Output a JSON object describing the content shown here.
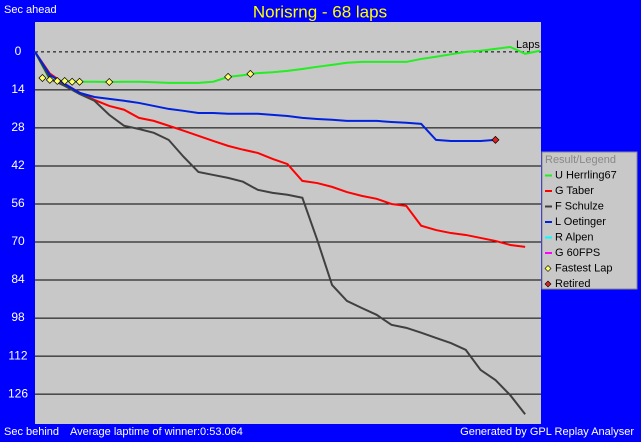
{
  "chart_data": {
    "type": "line",
    "title": "Norisrng - 68 laps",
    "y_top_label": "Sec ahead",
    "y_bottom_label": "Sec behind",
    "x_label": "Laps",
    "subtitle": "Average laptime of winner:0:53.064",
    "credit": "Generated by GPL Replay Analyser",
    "legend_title": "Result/Legend",
    "legend": "right",
    "grid": true,
    "y_inverted": true,
    "xlim": [
      0,
      68
    ],
    "ylim": [
      -11,
      137
    ],
    "yticks": [
      0,
      14,
      28,
      42,
      56,
      70,
      84,
      98,
      112,
      126
    ],
    "x": [
      0,
      2,
      4,
      6,
      8,
      10,
      12,
      14,
      16,
      18,
      20,
      22,
      24,
      26,
      28,
      30,
      32,
      34,
      36,
      38,
      40,
      42,
      44,
      46,
      48,
      50,
      52,
      54,
      56,
      58,
      60,
      62,
      64,
      66,
      68
    ],
    "series": [
      {
        "name": "U Herrling67",
        "color": "#22ee22",
        "values": [
          0,
          10.3,
          10.7,
          11,
          11,
          11.1,
          11,
          11,
          11.2,
          11.4,
          11.4,
          11.4,
          11,
          9.2,
          8.6,
          7.8,
          7.5,
          7,
          6.3,
          5.5,
          4.8,
          4,
          3.7,
          3.7,
          3.7,
          3.7,
          2.6,
          1.8,
          0.9,
          0,
          -0.4,
          -1.1,
          -1.8,
          0.7,
          -0.4
        ]
      },
      {
        "name": "G Taber",
        "color": "#ff0000",
        "values": [
          0,
          8,
          11.8,
          15,
          17.7,
          19.9,
          21.3,
          24.3,
          25.4,
          27.2,
          29,
          30.9,
          32.8,
          34.6,
          36,
          37.2,
          39.4,
          41.3,
          47.5,
          48.3,
          49.7,
          51.6,
          53,
          54.1,
          56,
          56.7,
          64,
          65.6,
          66.7,
          67.4,
          68.5,
          69.6,
          71.1,
          71.8,
          null
        ]
      },
      {
        "name": "F Schulze",
        "color": "#404040",
        "values": [
          0,
          9.9,
          12.5,
          15.5,
          18,
          23.2,
          27.2,
          28.4,
          29.8,
          32.4,
          38.6,
          44.2,
          45.3,
          46.4,
          47.8,
          50.8,
          51.9,
          52.6,
          53.7,
          69.2,
          85.8,
          91.7,
          94.3,
          96.8,
          100.5,
          101.6,
          103.4,
          105.3,
          107.2,
          109.7,
          117.1,
          120.8,
          126.4,
          133.4,
          null
        ]
      },
      {
        "name": "L Oetinger",
        "color": "#0022dd",
        "values": [
          0,
          8.5,
          11.8,
          15.1,
          16.6,
          17.3,
          18,
          18.8,
          19.9,
          21,
          21.7,
          22.5,
          22.5,
          22.8,
          22.8,
          22.8,
          23.2,
          23.6,
          24.3,
          24.7,
          25,
          25.4,
          25.4,
          25.4,
          25.8,
          26.1,
          26.5,
          32.4,
          32.8,
          32.8,
          32.8,
          32.4,
          null,
          null,
          null
        ]
      },
      {
        "name": "R Alpen",
        "color": "#00ffff",
        "values": [
          null,
          null,
          null,
          null,
          null,
          null,
          null,
          null,
          null,
          null,
          null,
          null,
          null,
          null,
          null,
          null,
          null,
          null,
          null,
          null,
          null,
          null,
          null,
          null,
          null,
          null,
          null,
          null,
          null,
          null,
          null,
          null,
          null,
          null,
          null
        ]
      },
      {
        "name": "G 60FPS",
        "color": "#ff00ff",
        "values": [
          null,
          null,
          null,
          null,
          null,
          null,
          null,
          null,
          null,
          null,
          null,
          null,
          null,
          null,
          null,
          null,
          null,
          null,
          null,
          null,
          null,
          null,
          null,
          null,
          null,
          null,
          null,
          null,
          null,
          null,
          null,
          null,
          null,
          null,
          null
        ]
      }
    ],
    "fastest_lap": {
      "name": "Fastest Lap",
      "color": "#ffff66",
      "x": [
        1,
        2,
        3,
        4,
        5,
        6,
        10,
        26,
        29
      ],
      "values": [
        9.6,
        10.3,
        10.7,
        10.7,
        11,
        11,
        11.1,
        9.2,
        8.1
      ]
    },
    "retired": {
      "name": "Retired",
      "color": "#dd2222",
      "x": [
        62
      ],
      "values": [
        32.4
      ]
    }
  }
}
